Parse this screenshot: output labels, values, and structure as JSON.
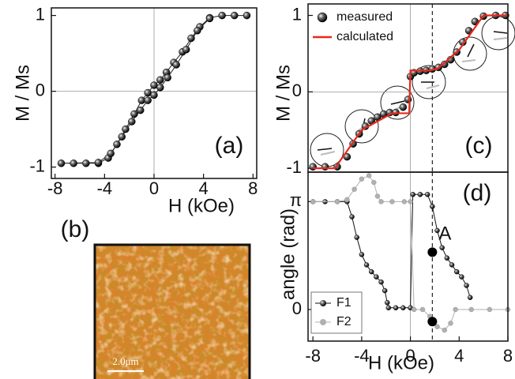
{
  "chart_data": [
    {
      "type": "line",
      "label": "(a)",
      "y_label": "M / Ms",
      "x_label": "H (kOe)",
      "xlim": [
        -8.3,
        8.3
      ],
      "xticks": [
        -8,
        -4,
        0,
        4,
        8
      ],
      "ylim": [
        -1.15,
        1.1
      ],
      "yticks": [
        -1,
        0,
        1
      ],
      "zero_lines": [
        "x",
        "y"
      ],
      "series": [
        {
          "color": "#222",
          "style": "line-points",
          "x": [
            7.5,
            6.5,
            5.5,
            4.5,
            3.7,
            3,
            2.3,
            1.6,
            1,
            0.5,
            0,
            -0.5,
            -1,
            -1.6,
            -2.3,
            -3,
            -3.7,
            -4.5,
            -5.5,
            -6.5,
            -7.5,
            -4.5,
            -3.5,
            -2.6,
            -1.8,
            -1.1,
            -0.5,
            0,
            0.5,
            1.1,
            1.8,
            2.6,
            3.5,
            4.5
          ],
          "values": [
            1,
            1,
            1,
            0.97,
            0.85,
            0.7,
            0.52,
            0.38,
            0.25,
            0.15,
            0.08,
            -0.02,
            -0.12,
            -0.3,
            -0.5,
            -0.7,
            -0.88,
            -0.95,
            -0.95,
            -0.95,
            -0.95,
            -0.94,
            -0.82,
            -0.6,
            -0.4,
            -0.25,
            -0.12,
            -0.05,
            0.05,
            0.18,
            0.35,
            0.55,
            0.8,
            0.96
          ]
        }
      ]
    },
    {
      "type": "image",
      "label": "(b)",
      "scale_bar": "2.0μm"
    },
    {
      "type": "line",
      "label": "(c)",
      "y_label": "M / Ms",
      "xlim": [
        -8.4,
        8
      ],
      "ylim": [
        -1.05,
        1.15
      ],
      "yticks": [
        -1,
        0,
        1
      ],
      "zero_lines": [
        "x",
        "y"
      ],
      "dashed_x": 1.8,
      "legend": "top-left",
      "series": [
        {
          "name": "measured",
          "color": "#111",
          "style": "points",
          "x": [
            -8,
            -7,
            -6,
            -5.2,
            -4.7,
            -4.2,
            -3.7,
            -3.2,
            -2.7,
            -2.2,
            -1.7,
            -1.2,
            -0.6,
            -0.2,
            0,
            0.3,
            0.8,
            1.3,
            1.8,
            2.3,
            2.8,
            3.3,
            3.8,
            4.3,
            4.8,
            5.3,
            6,
            7,
            7.8
          ],
          "values": [
            -0.98,
            -0.98,
            -0.98,
            -0.85,
            -0.68,
            -0.55,
            -0.45,
            -0.38,
            -0.33,
            -0.29,
            -0.27,
            -0.27,
            -0.2,
            -0.1,
            0.2,
            0.25,
            0.27,
            0.28,
            0.3,
            0.32,
            0.36,
            0.42,
            0.52,
            0.65,
            0.8,
            0.92,
            0.99,
            1,
            1
          ]
        },
        {
          "name": "calculated",
          "color": "#e8281e",
          "style": "line",
          "x": [
            -8,
            -6.2,
            -4,
            -1.5,
            -0.1,
            0,
            1.5,
            2.2,
            4,
            6,
            8
          ],
          "values": [
            -1,
            -1,
            -0.5,
            -0.28,
            -0.28,
            0.28,
            0.28,
            0.3,
            0.55,
            1,
            1
          ]
        }
      ]
    },
    {
      "type": "line",
      "label": "(d)",
      "y_label": "angle (rad)",
      "x_label": "H (kOe)",
      "xlim": [
        -8.4,
        8
      ],
      "xticks": [
        -8,
        -4,
        0,
        4,
        8
      ],
      "ylim": [
        -0.92,
        4.0
      ],
      "yticks": [
        0,
        {
          "value": 3.1416,
          "label": "π"
        }
      ],
      "zero_lines": [
        "x"
      ],
      "dashed_x": 1.8,
      "legend": "bottom-left",
      "markers": [
        {
          "x": 1.8,
          "y": 1.67,
          "label": "A"
        },
        {
          "x": 1.8,
          "y": -0.35
        }
      ],
      "series": [
        {
          "name": "F1",
          "color": "#111",
          "style": "line-points",
          "x": [
            -8,
            -7,
            -6,
            -5.2,
            -4.8,
            -4.4,
            -4,
            -3.6,
            -3.2,
            -2.8,
            -2.4,
            -2.1,
            -1.9,
            -1.8,
            -1.2,
            -0.6,
            0,
            0.2,
            0.8,
            1.4,
            1.8,
            2.2,
            2.6,
            3,
            3.4,
            3.8,
            4.2,
            4.6,
            4.9
          ],
          "values": [
            3.14,
            3.14,
            3.14,
            3.14,
            2.7,
            2.1,
            1.6,
            1.3,
            1.1,
            0.95,
            0.8,
            0.55,
            0.2,
            0.05,
            0.05,
            0.05,
            0.05,
            3.35,
            3.35,
            3.35,
            3.0,
            2.3,
            1.8,
            1.5,
            1.3,
            1.1,
            0.95,
            0.7,
            0.35
          ]
        },
        {
          "name": "F2",
          "color": "#b0b0b0",
          "style": "line-points",
          "x": [
            -8,
            -6,
            -5.2,
            -4.6,
            -4,
            -3.4,
            -3,
            -2.7,
            -2.4,
            -1.5,
            -0.5,
            0,
            0.3,
            1,
            1.6,
            2.2,
            2.8,
            3.3,
            3.7,
            5,
            6.5,
            8
          ],
          "values": [
            3.14,
            3.14,
            3.2,
            3.5,
            3.8,
            3.9,
            3.7,
            3.3,
            3.14,
            3.14,
            3.14,
            3.14,
            0,
            0,
            -0.2,
            -0.5,
            -0.6,
            -0.4,
            0,
            0,
            0,
            0
          ]
        }
      ]
    }
  ]
}
